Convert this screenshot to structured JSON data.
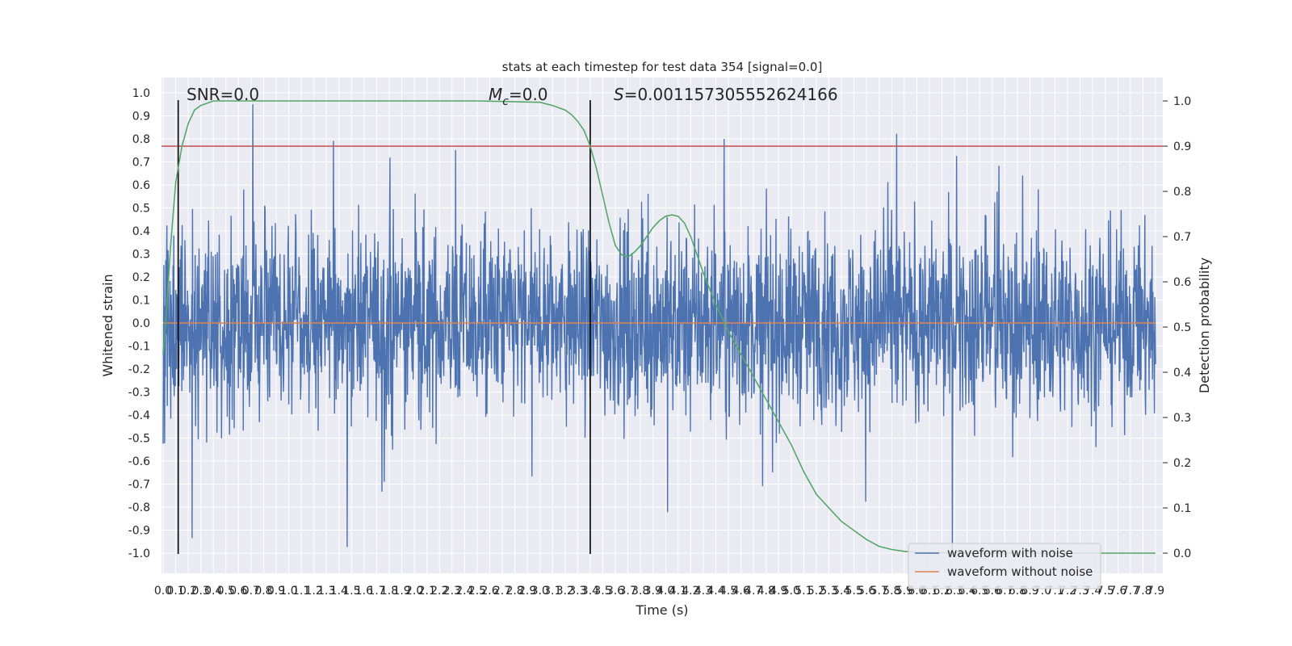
{
  "chart_data": {
    "type": "line",
    "title": "stats at each timestep for test data 354 [signal=0.0]",
    "xlabel": "Time (s)",
    "ylabel_left": "Whitened strain",
    "ylabel_right": "Detection probability",
    "xlim": [
      0.0,
      7.9
    ],
    "ylim_left": [
      -1.02,
      1.02
    ],
    "ylim_right": [
      0.0,
      1.0
    ],
    "x_ticks": [
      "0.0",
      "0.1",
      "0.2",
      "0.3",
      "0.4",
      "0.5",
      "0.6",
      "0.7",
      "0.8",
      "0.9",
      "1.0",
      "1.1",
      "1.2",
      "1.3",
      "1.4",
      "1.5",
      "1.6",
      "1.7",
      "1.8",
      "1.9",
      "2.0",
      "2.1",
      "2.2",
      "2.3",
      "2.4",
      "2.5",
      "2.6",
      "2.7",
      "2.8",
      "2.9",
      "3.0",
      "3.1",
      "3.2",
      "3.3",
      "3.4",
      "3.5",
      "3.6",
      "3.7",
      "3.8",
      "3.9",
      "4.0",
      "4.1",
      "4.2",
      "4.3",
      "4.4",
      "4.5",
      "4.6",
      "4.7",
      "4.8",
      "4.9",
      "5.0",
      "5.1",
      "5.2",
      "5.3",
      "5.4",
      "5.5",
      "5.6",
      "5.7",
      "5.8",
      "5.9",
      "6.0",
      "6.1",
      "6.2",
      "6.3",
      "6.4",
      "6.5",
      "6.6",
      "6.7",
      "6.8",
      "6.9",
      "7.0",
      "7.1",
      "7.2",
      "7.3",
      "7.4",
      "7.5",
      "7.6",
      "7.7",
      "7.8",
      "7.9"
    ],
    "y_ticks_left": [
      "1.0",
      "0.9",
      "0.8",
      "0.7",
      "0.6",
      "0.5",
      "0.4",
      "0.3",
      "0.2",
      "0.1",
      "0.0",
      "-0.1",
      "-0.2",
      "-0.3",
      "-0.4",
      "-0.5",
      "-0.6",
      "-0.7",
      "-0.8",
      "-0.9",
      "-1.0"
    ],
    "y_ticks_right": [
      "1.0",
      "0.9",
      "0.8",
      "0.7",
      "0.6",
      "0.5",
      "0.4",
      "0.3",
      "0.2",
      "0.1",
      "0.0"
    ],
    "annotations": {
      "snr": "SNR=0.0",
      "mc_prefix": "M",
      "mc_sub": "c",
      "mc_value": "=0.0",
      "s_prefix": "S",
      "s_value": "=0.001157305552624166"
    },
    "legend": {
      "placement": "lower-right",
      "entries": [
        "waveform with noise",
        "waveform without noise"
      ]
    },
    "series": [
      {
        "name": "waveform with noise",
        "color": "#4c72b0",
        "note_envelope": {
          "x": [
            0.0,
            7.9
          ],
          "approx_max": [
            0.86,
            0.77
          ],
          "approx_min": [
            -1.0,
            -0.85
          ]
        }
      },
      {
        "name": "waveform without noise",
        "color": "#dd8452",
        "y": [
          0.0,
          0.0
        ],
        "x": [
          0.0,
          7.9
        ]
      },
      {
        "color": "#55a868",
        "axis": "right",
        "x": [
          0.0,
          0.03,
          0.06,
          0.1,
          0.15,
          0.2,
          0.25,
          0.3,
          0.4,
          0.5,
          0.8,
          1.5,
          2.5,
          3.0,
          3.1,
          3.2,
          3.25,
          3.3,
          3.35,
          3.4,
          3.45,
          3.5,
          3.55,
          3.6,
          3.65,
          3.7,
          3.75,
          3.8,
          3.85,
          3.9,
          3.95,
          4.0,
          4.05,
          4.1,
          4.15,
          4.2,
          4.3,
          4.4,
          4.5,
          4.6,
          4.7,
          4.8,
          4.9,
          5.0,
          5.1,
          5.2,
          5.3,
          5.4,
          5.5,
          5.6,
          5.7,
          5.8,
          5.9,
          6.0,
          6.2,
          6.5,
          7.0,
          7.5,
          7.9
        ],
        "y": [
          0.44,
          0.55,
          0.68,
          0.82,
          0.9,
          0.95,
          0.98,
          0.99,
          1.0,
          1.0,
          1.0,
          1.0,
          1.0,
          0.997,
          0.99,
          0.98,
          0.97,
          0.955,
          0.935,
          0.9,
          0.85,
          0.79,
          0.73,
          0.68,
          0.66,
          0.655,
          0.665,
          0.68,
          0.7,
          0.72,
          0.735,
          0.745,
          0.748,
          0.745,
          0.73,
          0.7,
          0.62,
          0.55,
          0.49,
          0.44,
          0.39,
          0.34,
          0.29,
          0.24,
          0.18,
          0.13,
          0.1,
          0.07,
          0.05,
          0.03,
          0.015,
          0.008,
          0.004,
          0.002,
          0.001,
          0.0,
          0.0,
          0.0,
          0.0
        ]
      },
      {
        "color": "#c44e52",
        "axis": "right",
        "y": [
          0.9,
          0.9
        ],
        "x": [
          0.0,
          7.9
        ]
      }
    ],
    "vertical_lines_x": [
      0.12,
      3.4
    ],
    "grid": true
  }
}
